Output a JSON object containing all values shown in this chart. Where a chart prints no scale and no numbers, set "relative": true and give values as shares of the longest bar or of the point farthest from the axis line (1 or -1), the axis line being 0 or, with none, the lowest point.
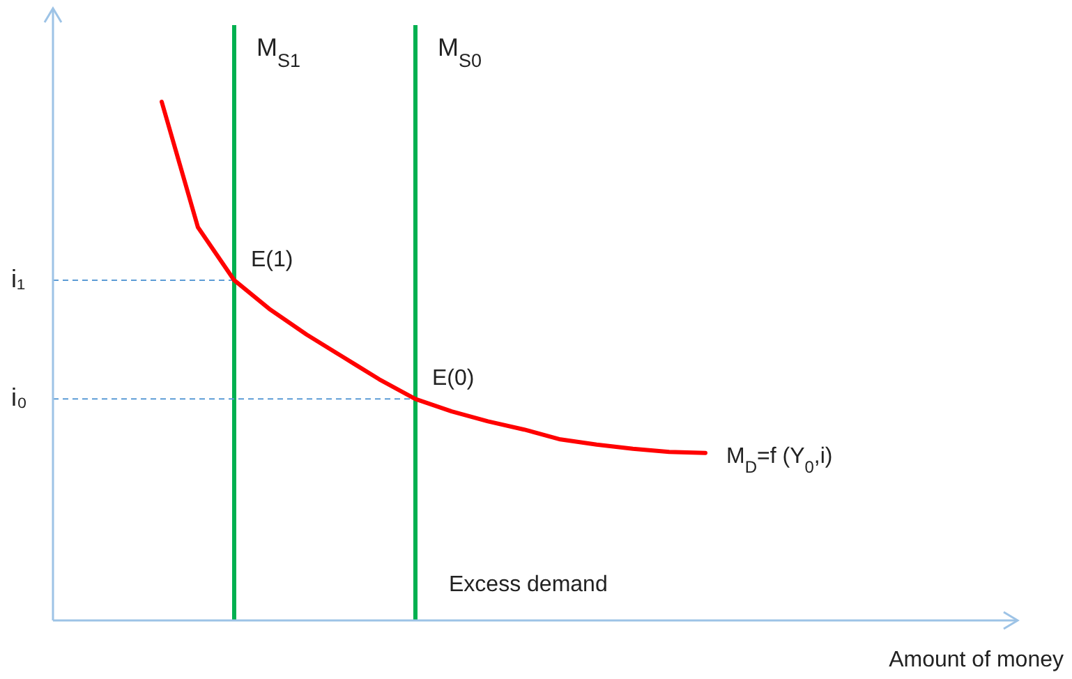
{
  "chart_data": {
    "type": "line",
    "relative": true,
    "xlabel": "Amount of money",
    "categories": [
      null,
      null,
      null,
      null,
      null,
      null,
      null,
      null,
      null,
      null,
      null,
      null,
      null,
      null,
      null,
      null,
      null,
      null,
      null,
      null,
      null,
      null,
      null,
      null,
      null,
      null,
      null
    ],
    "series": [
      {
        "name": "M$_{D}$=f (Y$_{0}$,i)",
        "color": "#ff0000",
        "values": [
          null,
          null,
          null,
          1.0,
          0.758,
          0.656,
          0.599,
          0.551,
          0.508,
          0.465,
          0.427,
          0.403,
          0.384,
          0.368,
          0.349,
          0.339,
          0.331,
          0.325,
          0.323,
          null,
          null,
          null,
          null,
          null,
          null,
          null,
          null
        ]
      }
    ],
    "ref_lines": [
      {
        "axis": "y",
        "value": 0.656,
        "label": "i₁",
        "color": "#5b9bd5",
        "line_style": "dashed"
      },
      {
        "axis": "y",
        "value": 0.427,
        "label": "i₀",
        "color": "#5b9bd5",
        "line_style": "dashed"
      }
    ],
    "annotations": [
      "E(1)",
      "E(0)",
      "M$_{S1}$",
      "M$_{S0}$",
      "Excess demand"
    ]
  }
}
